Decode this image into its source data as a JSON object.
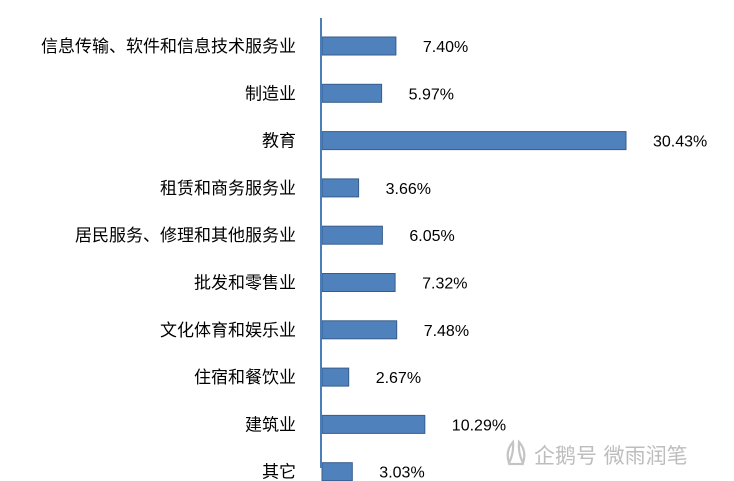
{
  "chart_data": {
    "type": "bar",
    "orientation": "horizontal",
    "categories": [
      "信息传输、软件和信息技术服务业",
      "制造业",
      "教育",
      "租赁和商务服务业",
      "居民服务、修理和其他服务业",
      "批发和零售业",
      "文化体育和娱乐业",
      "住宿和餐饮业",
      "建筑业",
      "其它"
    ],
    "values": [
      7.4,
      5.97,
      30.43,
      3.66,
      6.05,
      7.32,
      7.48,
      2.67,
      10.29,
      3.03
    ],
    "value_labels": [
      "7.40%",
      "5.97%",
      "30.43%",
      "3.66%",
      "6.05%",
      "7.32%",
      "7.48%",
      "2.67%",
      "10.29%",
      "3.03%"
    ],
    "title": "",
    "xlabel": "",
    "ylabel": "",
    "xlim": [
      0,
      30.43
    ],
    "grid": false,
    "legend": "none",
    "colors": {
      "bar": "#4f81bd",
      "bar_border": "#385d8a",
      "axis": "#4a7ebb"
    }
  },
  "watermark": {
    "text": "企鹅号 微雨润笔",
    "icon": "penguin-logo-icon"
  }
}
